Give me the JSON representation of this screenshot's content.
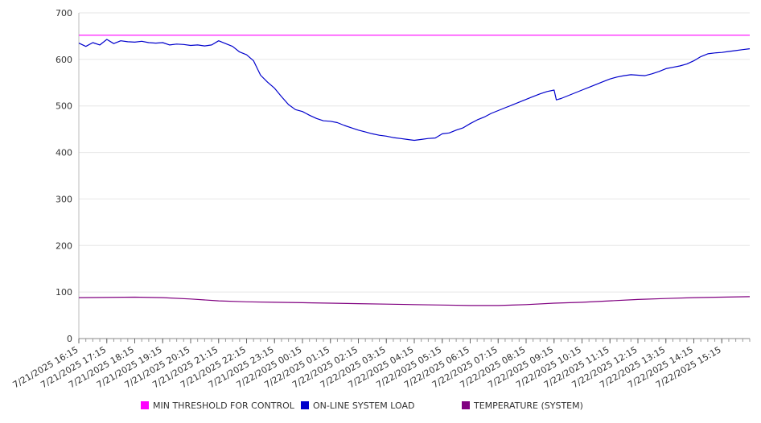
{
  "chart_data": {
    "type": "line",
    "ylim": [
      0,
      700
    ],
    "y_ticks": [
      0,
      100,
      200,
      300,
      400,
      500,
      600,
      700
    ],
    "x_tick_labels": [
      "7/21/2025 16:15",
      "7/21/2025 17:15",
      "7/21/2025 18:15",
      "7/21/2025 19:15",
      "7/21/2025 20:15",
      "7/21/2025 21:15",
      "7/21/2025 22:15",
      "7/21/2025 23:15",
      "7/22/2025 00:15",
      "7/22/2025 01:15",
      "7/22/2025 02:15",
      "7/22/2025 03:15",
      "7/22/2025 04:15",
      "7/22/2025 05:15",
      "7/22/2025 06:15",
      "7/22/2025 07:15",
      "7/22/2025 08:15",
      "7/22/2025 09:15",
      "7/22/2025 10:15",
      "7/22/2025 11:15",
      "7/22/2025 12:15",
      "7/22/2025 13:15",
      "7/22/2025 14:15",
      "7/22/2025 15:15"
    ],
    "x_start": "7/21/2025 16:15",
    "x_end": "7/22/2025 16:15",
    "grid": true,
    "legend_position": "bottom",
    "series": [
      {
        "name": "MIN THRESHOLD FOR CONTROL",
        "color": "#ff00ff",
        "points": [
          [
            "7/21/2025 16:15",
            652
          ],
          [
            "7/22/2025 16:15",
            652
          ]
        ]
      },
      {
        "name": "ON-LINE SYSTEM LOAD",
        "color": "#0000cc",
        "points": [
          [
            "7/21/2025 16:15",
            635
          ],
          [
            "7/21/2025 16:30",
            628
          ],
          [
            "7/21/2025 16:45",
            636
          ],
          [
            "7/21/2025 17:00",
            631
          ],
          [
            "7/21/2025 17:15",
            643
          ],
          [
            "7/21/2025 17:30",
            634
          ],
          [
            "7/21/2025 17:45",
            640
          ],
          [
            "7/21/2025 18:00",
            638
          ],
          [
            "7/21/2025 18:15",
            637
          ],
          [
            "7/21/2025 18:30",
            639
          ],
          [
            "7/21/2025 18:45",
            636
          ],
          [
            "7/21/2025 19:00",
            635
          ],
          [
            "7/21/2025 19:15",
            636
          ],
          [
            "7/21/2025 19:30",
            631
          ],
          [
            "7/21/2025 19:45",
            633
          ],
          [
            "7/21/2025 20:00",
            632
          ],
          [
            "7/21/2025 20:15",
            630
          ],
          [
            "7/21/2025 20:30",
            631
          ],
          [
            "7/21/2025 20:45",
            629
          ],
          [
            "7/21/2025 21:00",
            631
          ],
          [
            "7/21/2025 21:15",
            640
          ],
          [
            "7/21/2025 21:30",
            634
          ],
          [
            "7/21/2025 21:45",
            628
          ],
          [
            "7/21/2025 22:00",
            616
          ],
          [
            "7/21/2025 22:15",
            610
          ],
          [
            "7/21/2025 22:30",
            597
          ],
          [
            "7/21/2025 22:45",
            566
          ],
          [
            "7/21/2025 23:00",
            551
          ],
          [
            "7/21/2025 23:15",
            538
          ],
          [
            "7/21/2025 23:30",
            520
          ],
          [
            "7/21/2025 23:45",
            503
          ],
          [
            "7/22/2025 00:00",
            492
          ],
          [
            "7/22/2025 00:15",
            488
          ],
          [
            "7/22/2025 00:30",
            480
          ],
          [
            "7/22/2025 00:45",
            473
          ],
          [
            "7/22/2025 01:00",
            468
          ],
          [
            "7/22/2025 01:15",
            467
          ],
          [
            "7/22/2025 01:30",
            464
          ],
          [
            "7/22/2025 01:45",
            458
          ],
          [
            "7/22/2025 02:00",
            453
          ],
          [
            "7/22/2025 02:15",
            448
          ],
          [
            "7/22/2025 02:30",
            444
          ],
          [
            "7/22/2025 02:45",
            440
          ],
          [
            "7/22/2025 03:00",
            437
          ],
          [
            "7/22/2025 03:15",
            435
          ],
          [
            "7/22/2025 03:30",
            432
          ],
          [
            "7/22/2025 03:45",
            430
          ],
          [
            "7/22/2025 04:00",
            428
          ],
          [
            "7/22/2025 04:15",
            426
          ],
          [
            "7/22/2025 04:30",
            428
          ],
          [
            "7/22/2025 04:45",
            430
          ],
          [
            "7/22/2025 05:00",
            431
          ],
          [
            "7/22/2025 05:15",
            440
          ],
          [
            "7/22/2025 05:30",
            442
          ],
          [
            "7/22/2025 05:45",
            448
          ],
          [
            "7/22/2025 06:00",
            453
          ],
          [
            "7/22/2025 06:15",
            462
          ],
          [
            "7/22/2025 06:30",
            470
          ],
          [
            "7/22/2025 06:45",
            476
          ],
          [
            "7/22/2025 07:00",
            484
          ],
          [
            "7/22/2025 07:15",
            490
          ],
          [
            "7/22/2025 07:30",
            496
          ],
          [
            "7/22/2025 07:45",
            502
          ],
          [
            "7/22/2025 08:00",
            508
          ],
          [
            "7/22/2025 08:15",
            514
          ],
          [
            "7/22/2025 08:30",
            520
          ],
          [
            "7/22/2025 08:45",
            526
          ],
          [
            "7/22/2025 09:00",
            531
          ],
          [
            "7/22/2025 09:15",
            534
          ],
          [
            "7/22/2025 09:20",
            513
          ],
          [
            "7/22/2025 09:30",
            516
          ],
          [
            "7/22/2025 09:45",
            522
          ],
          [
            "7/22/2025 10:00",
            528
          ],
          [
            "7/22/2025 10:15",
            534
          ],
          [
            "7/22/2025 10:30",
            540
          ],
          [
            "7/22/2025 10:45",
            546
          ],
          [
            "7/22/2025 11:00",
            552
          ],
          [
            "7/22/2025 11:15",
            558
          ],
          [
            "7/22/2025 11:30",
            562
          ],
          [
            "7/22/2025 11:45",
            565
          ],
          [
            "7/22/2025 12:00",
            567
          ],
          [
            "7/22/2025 12:15",
            566
          ],
          [
            "7/22/2025 12:30",
            565
          ],
          [
            "7/22/2025 12:45",
            569
          ],
          [
            "7/22/2025 13:00",
            574
          ],
          [
            "7/22/2025 13:15",
            580
          ],
          [
            "7/22/2025 13:30",
            583
          ],
          [
            "7/22/2025 13:45",
            586
          ],
          [
            "7/22/2025 14:00",
            590
          ],
          [
            "7/22/2025 14:15",
            597
          ],
          [
            "7/22/2025 14:30",
            606
          ],
          [
            "7/22/2025 14:45",
            612
          ],
          [
            "7/22/2025 15:00",
            614
          ],
          [
            "7/22/2025 15:15",
            615
          ],
          [
            "7/22/2025 15:30",
            617
          ],
          [
            "7/22/2025 15:45",
            619
          ],
          [
            "7/22/2025 16:00",
            621
          ],
          [
            "7/22/2025 16:15",
            623
          ]
        ]
      },
      {
        "name": "TEMPERATURE (SYSTEM)",
        "color": "#800080",
        "points": [
          [
            "7/21/2025 16:15",
            88
          ],
          [
            "7/21/2025 18:15",
            89
          ],
          [
            "7/21/2025 19:15",
            88
          ],
          [
            "7/21/2025 20:15",
            85
          ],
          [
            "7/21/2025 21:15",
            81
          ],
          [
            "7/21/2025 22:15",
            79
          ],
          [
            "7/21/2025 23:15",
            78
          ],
          [
            "7/22/2025 00:15",
            77
          ],
          [
            "7/22/2025 01:15",
            76
          ],
          [
            "7/22/2025 02:15",
            75
          ],
          [
            "7/22/2025 03:15",
            74
          ],
          [
            "7/22/2025 04:15",
            73
          ],
          [
            "7/22/2025 05:15",
            72
          ],
          [
            "7/22/2025 06:15",
            71
          ],
          [
            "7/22/2025 07:15",
            71
          ],
          [
            "7/22/2025 08:15",
            73
          ],
          [
            "7/22/2025 09:15",
            76
          ],
          [
            "7/22/2025 10:15",
            78
          ],
          [
            "7/22/2025 11:15",
            81
          ],
          [
            "7/22/2025 12:15",
            84
          ],
          [
            "7/22/2025 13:15",
            86
          ],
          [
            "7/22/2025 14:15",
            88
          ],
          [
            "7/22/2025 15:15",
            89
          ],
          [
            "7/22/2025 16:15",
            90
          ]
        ]
      }
    ]
  }
}
